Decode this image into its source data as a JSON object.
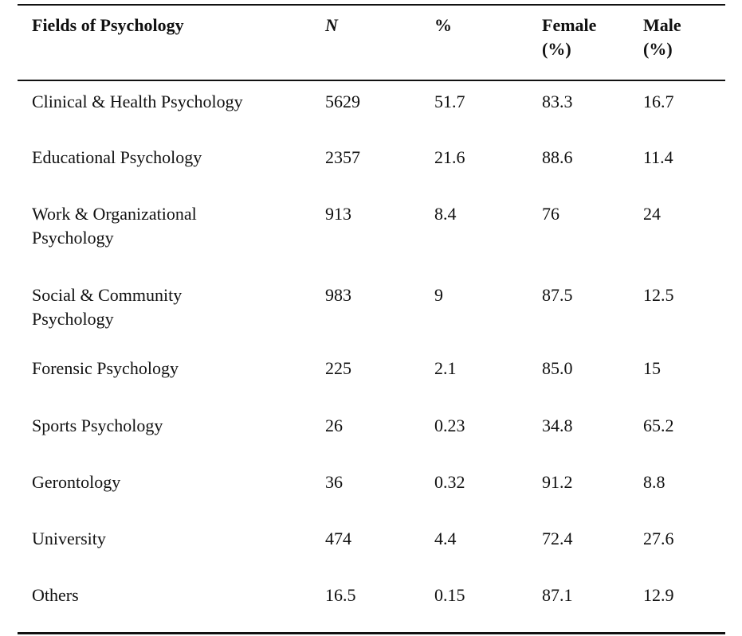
{
  "table": {
    "header": [
      "Fields of Psychology",
      "N",
      "%",
      "Female\n(%)",
      "Male\n(%)"
    ],
    "rows": [
      [
        "Clinical & Health Psychology",
        "5629",
        "51.7",
        "83.3",
        "16.7"
      ],
      [
        "Educational Psychology",
        "2357",
        "21.6",
        "88.6",
        "11.4"
      ],
      [
        "Work & Organizational\nPsychology",
        "913",
        "8.4",
        "76",
        "24"
      ],
      [
        "Social & Community\nPsychology",
        "983",
        "9",
        "87.5",
        "12.5"
      ],
      [
        "Forensic Psychology",
        "225",
        "2.1",
        "85.0",
        "15"
      ],
      [
        "Sports Psychology",
        "26",
        "0.23",
        "34.8",
        "65.2"
      ],
      [
        "Gerontology",
        "36",
        "0.32",
        "91.2",
        "8.8"
      ],
      [
        "University",
        "474",
        "4.4",
        "72.4",
        "27.6"
      ],
      [
        "Others",
        "16.5",
        "0.15",
        "87.1",
        "12.9"
      ]
    ]
  }
}
